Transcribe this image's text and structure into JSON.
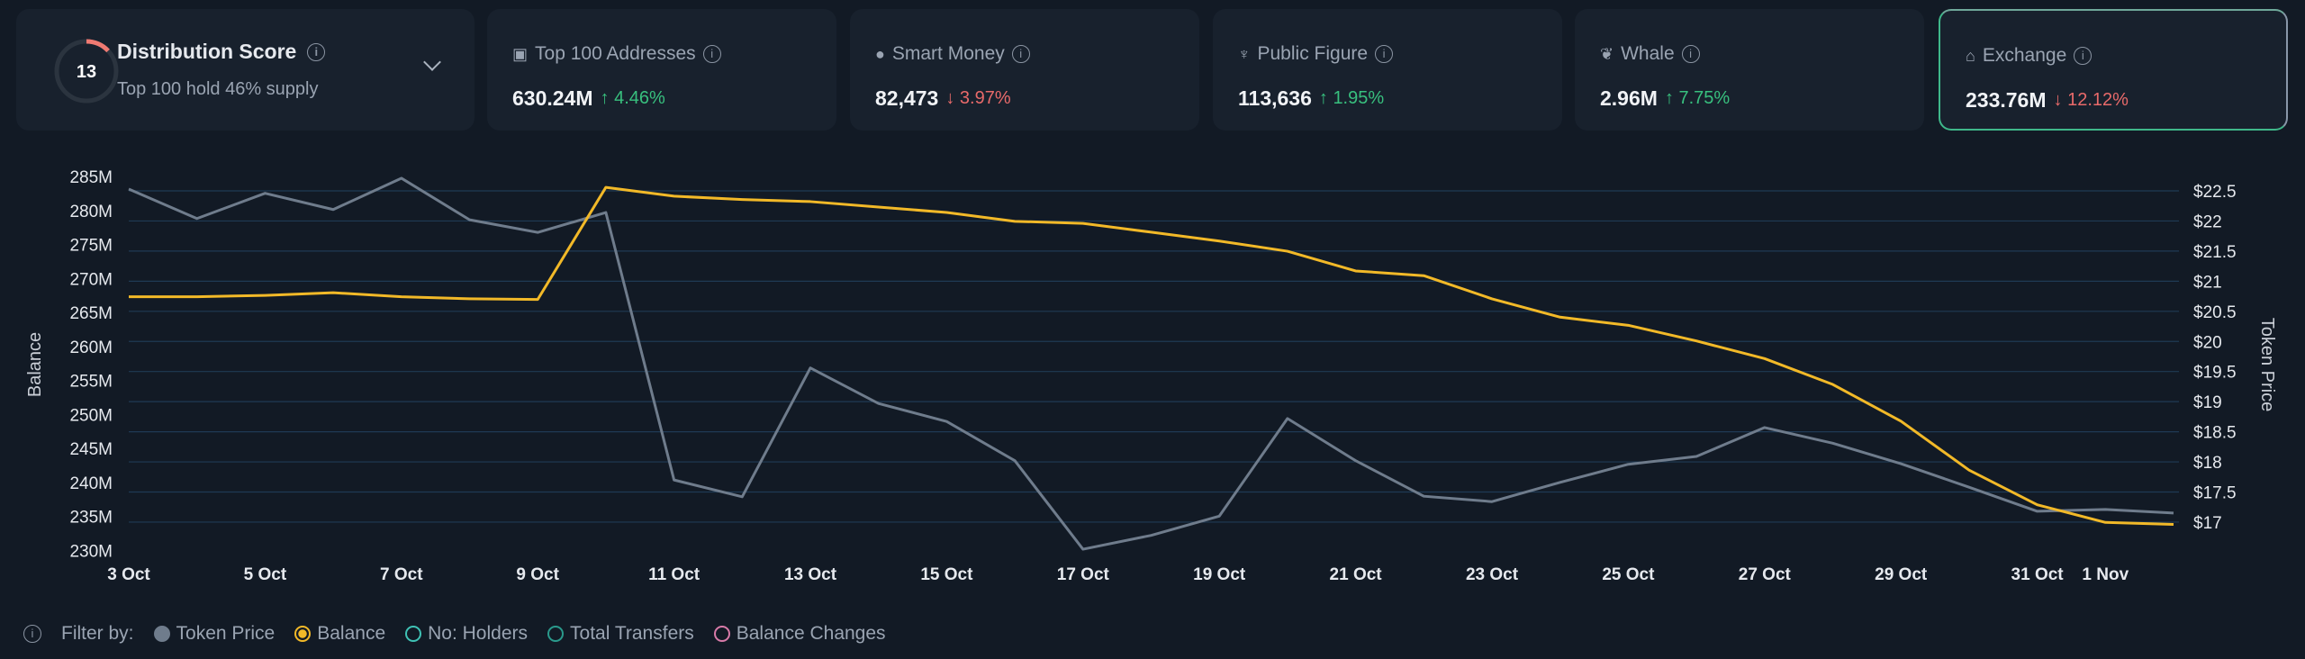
{
  "score": {
    "value": "13",
    "title": "Distribution Score",
    "subtitle": "Top 100 hold 46% supply",
    "ring_fraction": 0.13,
    "ring_color": "#f07a72"
  },
  "cards": [
    {
      "icon": "money-icon",
      "glyph": "▣",
      "title": "Top 100 Addresses",
      "value": "630.24M",
      "change": "4.46%",
      "dir": "up"
    },
    {
      "icon": "sunglasses-icon",
      "glyph": "●",
      "title": "Smart Money",
      "value": "82,473",
      "change": "3.97%",
      "dir": "down"
    },
    {
      "icon": "podium-icon",
      "glyph": "♆",
      "title": "Public Figure",
      "value": "113,636",
      "change": "1.95%",
      "dir": "up"
    },
    {
      "icon": "whale-icon",
      "glyph": "❦",
      "title": "Whale",
      "value": "2.96M",
      "change": "7.75%",
      "dir": "up"
    },
    {
      "icon": "bank-icon",
      "glyph": "⌂",
      "title": "Exchange",
      "value": "233.76M",
      "change": "12.12%",
      "dir": "down",
      "active": true
    }
  ],
  "chart_data": {
    "type": "line",
    "x": [
      "3 Oct",
      "4 Oct",
      "5 Oct",
      "6 Oct",
      "7 Oct",
      "8 Oct",
      "9 Oct",
      "10 Oct",
      "11 Oct",
      "12 Oct",
      "13 Oct",
      "14 Oct",
      "15 Oct",
      "16 Oct",
      "17 Oct",
      "18 Oct",
      "19 Oct",
      "20 Oct",
      "21 Oct",
      "22 Oct",
      "23 Oct",
      "24 Oct",
      "25 Oct",
      "26 Oct",
      "27 Oct",
      "28 Oct",
      "29 Oct",
      "30 Oct",
      "31 Oct",
      "1 Nov",
      "2 Nov"
    ],
    "x_tick_labels": [
      "3 Oct",
      "5 Oct",
      "7 Oct",
      "9 Oct",
      "11 Oct",
      "13 Oct",
      "15 Oct",
      "17 Oct",
      "19 Oct",
      "21 Oct",
      "23 Oct",
      "25 Oct",
      "27 Oct",
      "29 Oct",
      "31 Oct",
      "1 Nov"
    ],
    "ylabel": "Balance",
    "ylabel_right": "Token Price",
    "ylim": [
      230,
      285
    ],
    "y_ticks": [
      "230M",
      "235M",
      "240M",
      "245M",
      "250M",
      "255M",
      "260M",
      "265M",
      "270M",
      "275M",
      "280M",
      "285M"
    ],
    "ylim_right": [
      17,
      22.5
    ],
    "y_ticks_right": [
      "$17",
      "$17.5",
      "$18",
      "$18.5",
      "$19",
      "$19.5",
      "$20",
      "$20.5",
      "$21",
      "$21.5",
      "$22",
      "$22.5"
    ],
    "grid": true,
    "series": [
      {
        "name": "Balance",
        "axis": "left",
        "color": "#f2b928",
        "values": [
          267.3,
          267.3,
          267.5,
          267.9,
          267.3,
          267.0,
          266.9,
          283.4,
          282.1,
          281.6,
          281.3,
          280.5,
          279.7,
          278.4,
          278.1,
          276.8,
          275.5,
          274.0,
          271.1,
          270.4,
          267.0,
          264.3,
          263.1,
          260.8,
          258.2,
          254.4,
          249.0,
          241.8,
          236.7,
          234.1,
          233.8
        ]
      },
      {
        "name": "Token Price",
        "axis": "right",
        "color": "#6f7c8c",
        "values": [
          22.53,
          22.04,
          22.46,
          22.19,
          22.71,
          22.02,
          21.81,
          22.14,
          17.7,
          17.42,
          19.56,
          18.97,
          18.67,
          18.02,
          16.55,
          16.78,
          17.1,
          18.72,
          18.02,
          17.43,
          17.34,
          17.66,
          17.96,
          18.09,
          18.57,
          18.31,
          17.97,
          17.58,
          17.18,
          17.21,
          17.15
        ]
      }
    ]
  },
  "legend": {
    "label": "Filter by:",
    "items": [
      {
        "label": "Token Price",
        "color": "#6f7c8c",
        "fill": true
      },
      {
        "label": "Balance",
        "color": "#f2b928",
        "selected": true
      },
      {
        "label": "No: Holders",
        "color": "#3fc2b5"
      },
      {
        "label": "Total Transfers",
        "color": "#2a9a8c"
      },
      {
        "label": "Balance Changes",
        "color": "#d77aa8"
      }
    ]
  }
}
